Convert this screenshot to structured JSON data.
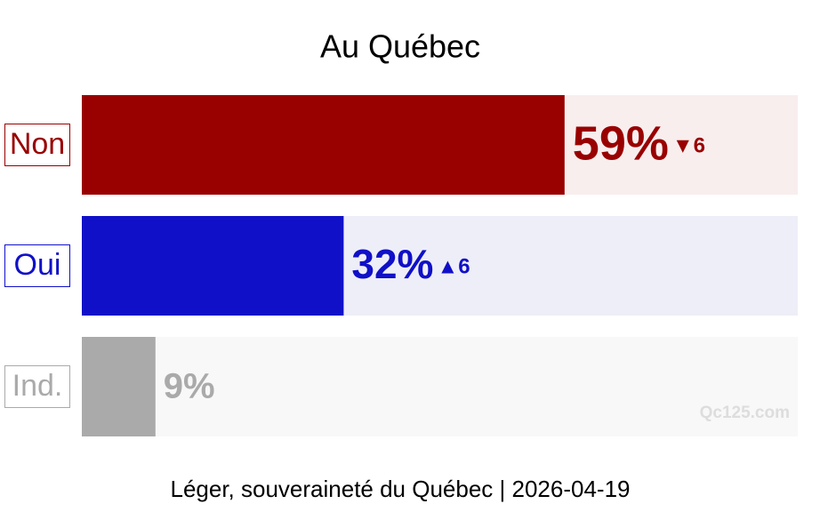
{
  "chart_data": {
    "type": "bar",
    "orientation": "horizontal",
    "title": "Au Québec",
    "caption": "Léger, souveraineté du Québec | 2026-04-19",
    "watermark": "Qc125.com",
    "categories": [
      "Non",
      "Oui",
      "Ind."
    ],
    "values": [
      59,
      32,
      9
    ],
    "value_labels": [
      "59%",
      "32%",
      "9%"
    ],
    "changes": [
      "▼6",
      "▲6",
      null
    ],
    "colors": [
      "#990000",
      "#1010c8",
      "#aaaaaa"
    ],
    "background_colors": [
      "#f8eeee",
      "#eeeef8",
      "#f8f8f8"
    ],
    "xlim": [
      0,
      87.5
    ]
  }
}
